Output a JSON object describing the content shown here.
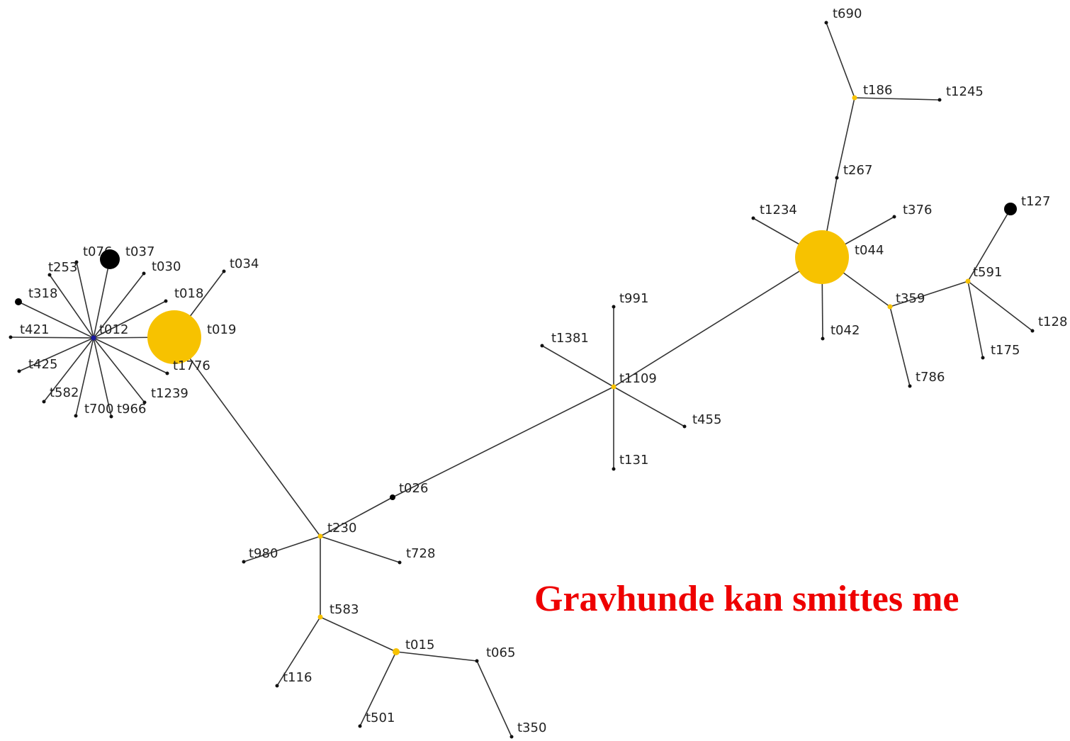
{
  "nodes": [
    {
      "label": "t012"
    },
    {
      "label": "t076"
    },
    {
      "label": "t037"
    },
    {
      "label": "t030"
    },
    {
      "label": "t253"
    },
    {
      "label": "t318"
    },
    {
      "label": "t018"
    },
    {
      "label": "t421"
    },
    {
      "label": "t019"
    },
    {
      "label": "t425"
    },
    {
      "label": "t1776"
    },
    {
      "label": "t582"
    },
    {
      "label": "t700"
    },
    {
      "label": "t966"
    },
    {
      "label": "t1239"
    },
    {
      "label": "t034"
    },
    {
      "label": "t230"
    },
    {
      "label": "t026"
    },
    {
      "label": "t1109"
    },
    {
      "label": "t980"
    },
    {
      "label": "t728"
    },
    {
      "label": "t583"
    },
    {
      "label": "t116"
    },
    {
      "label": "t015"
    },
    {
      "label": "t065"
    },
    {
      "label": "t501"
    },
    {
      "label": "t350"
    },
    {
      "label": "t991"
    },
    {
      "label": "t1381"
    },
    {
      "label": "t455"
    },
    {
      "label": "t131"
    },
    {
      "label": "t044"
    },
    {
      "label": "t1234"
    },
    {
      "label": "t376"
    },
    {
      "label": "t042"
    },
    {
      "label": "t267"
    },
    {
      "label": "t186"
    },
    {
      "label": "t690"
    },
    {
      "label": "t1245"
    },
    {
      "label": "t359"
    },
    {
      "label": "t786"
    },
    {
      "label": "t591"
    },
    {
      "label": "t127"
    },
    {
      "label": "t128"
    },
    {
      "label": "t175"
    }
  ],
  "caption": "Gravhunde kan smittes me"
}
